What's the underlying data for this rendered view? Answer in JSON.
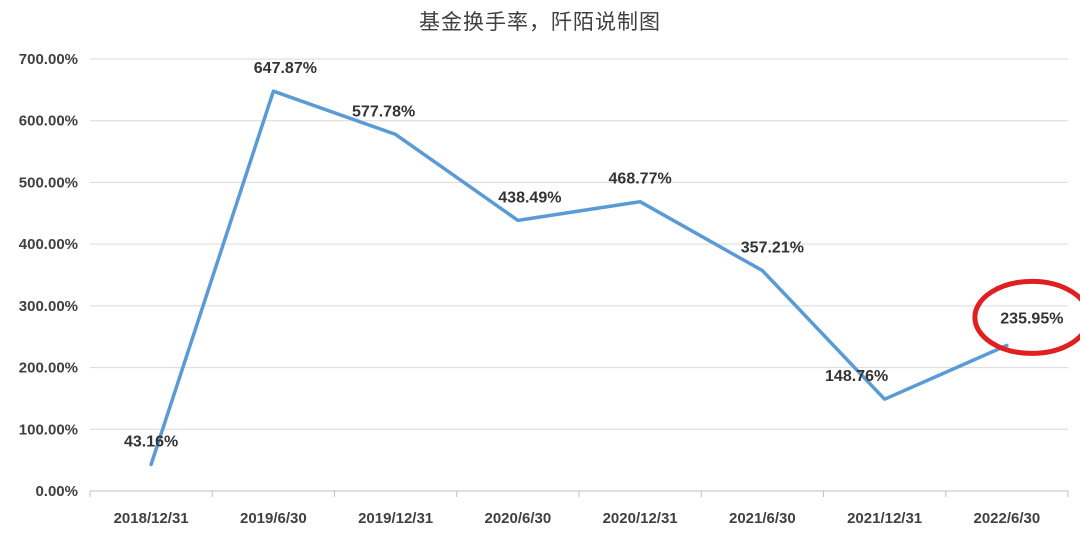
{
  "title": "基金换手率，阡陌说制图",
  "chart_data": {
    "type": "line",
    "title": "基金换手率，阡陌说制图",
    "categories": [
      "2018/12/31",
      "2019/6/30",
      "2019/12/31",
      "2020/6/30",
      "2020/12/31",
      "2021/6/30",
      "2021/12/31",
      "2022/6/30"
    ],
    "values": [
      43.16,
      647.87,
      577.78,
      438.49,
      468.77,
      357.21,
      148.76,
      235.95
    ],
    "data_labels": [
      "43.16%",
      "647.87%",
      "577.78%",
      "438.49%",
      "468.77%",
      "357.21%",
      "148.76%",
      "235.95%"
    ],
    "ylim": [
      0,
      700
    ],
    "yticks": [
      0,
      100,
      200,
      300,
      400,
      500,
      600,
      700
    ],
    "ytick_labels": [
      "0.00%",
      "100.00%",
      "200.00%",
      "300.00%",
      "400.00%",
      "500.00%",
      "600.00%",
      "700.00%"
    ],
    "xlabel": "",
    "ylabel": "",
    "grid": true,
    "legend": "none",
    "line_color": "#5B9BD5",
    "annotation": {
      "type": "circle",
      "target_index": 7,
      "color": "#E02020"
    }
  }
}
